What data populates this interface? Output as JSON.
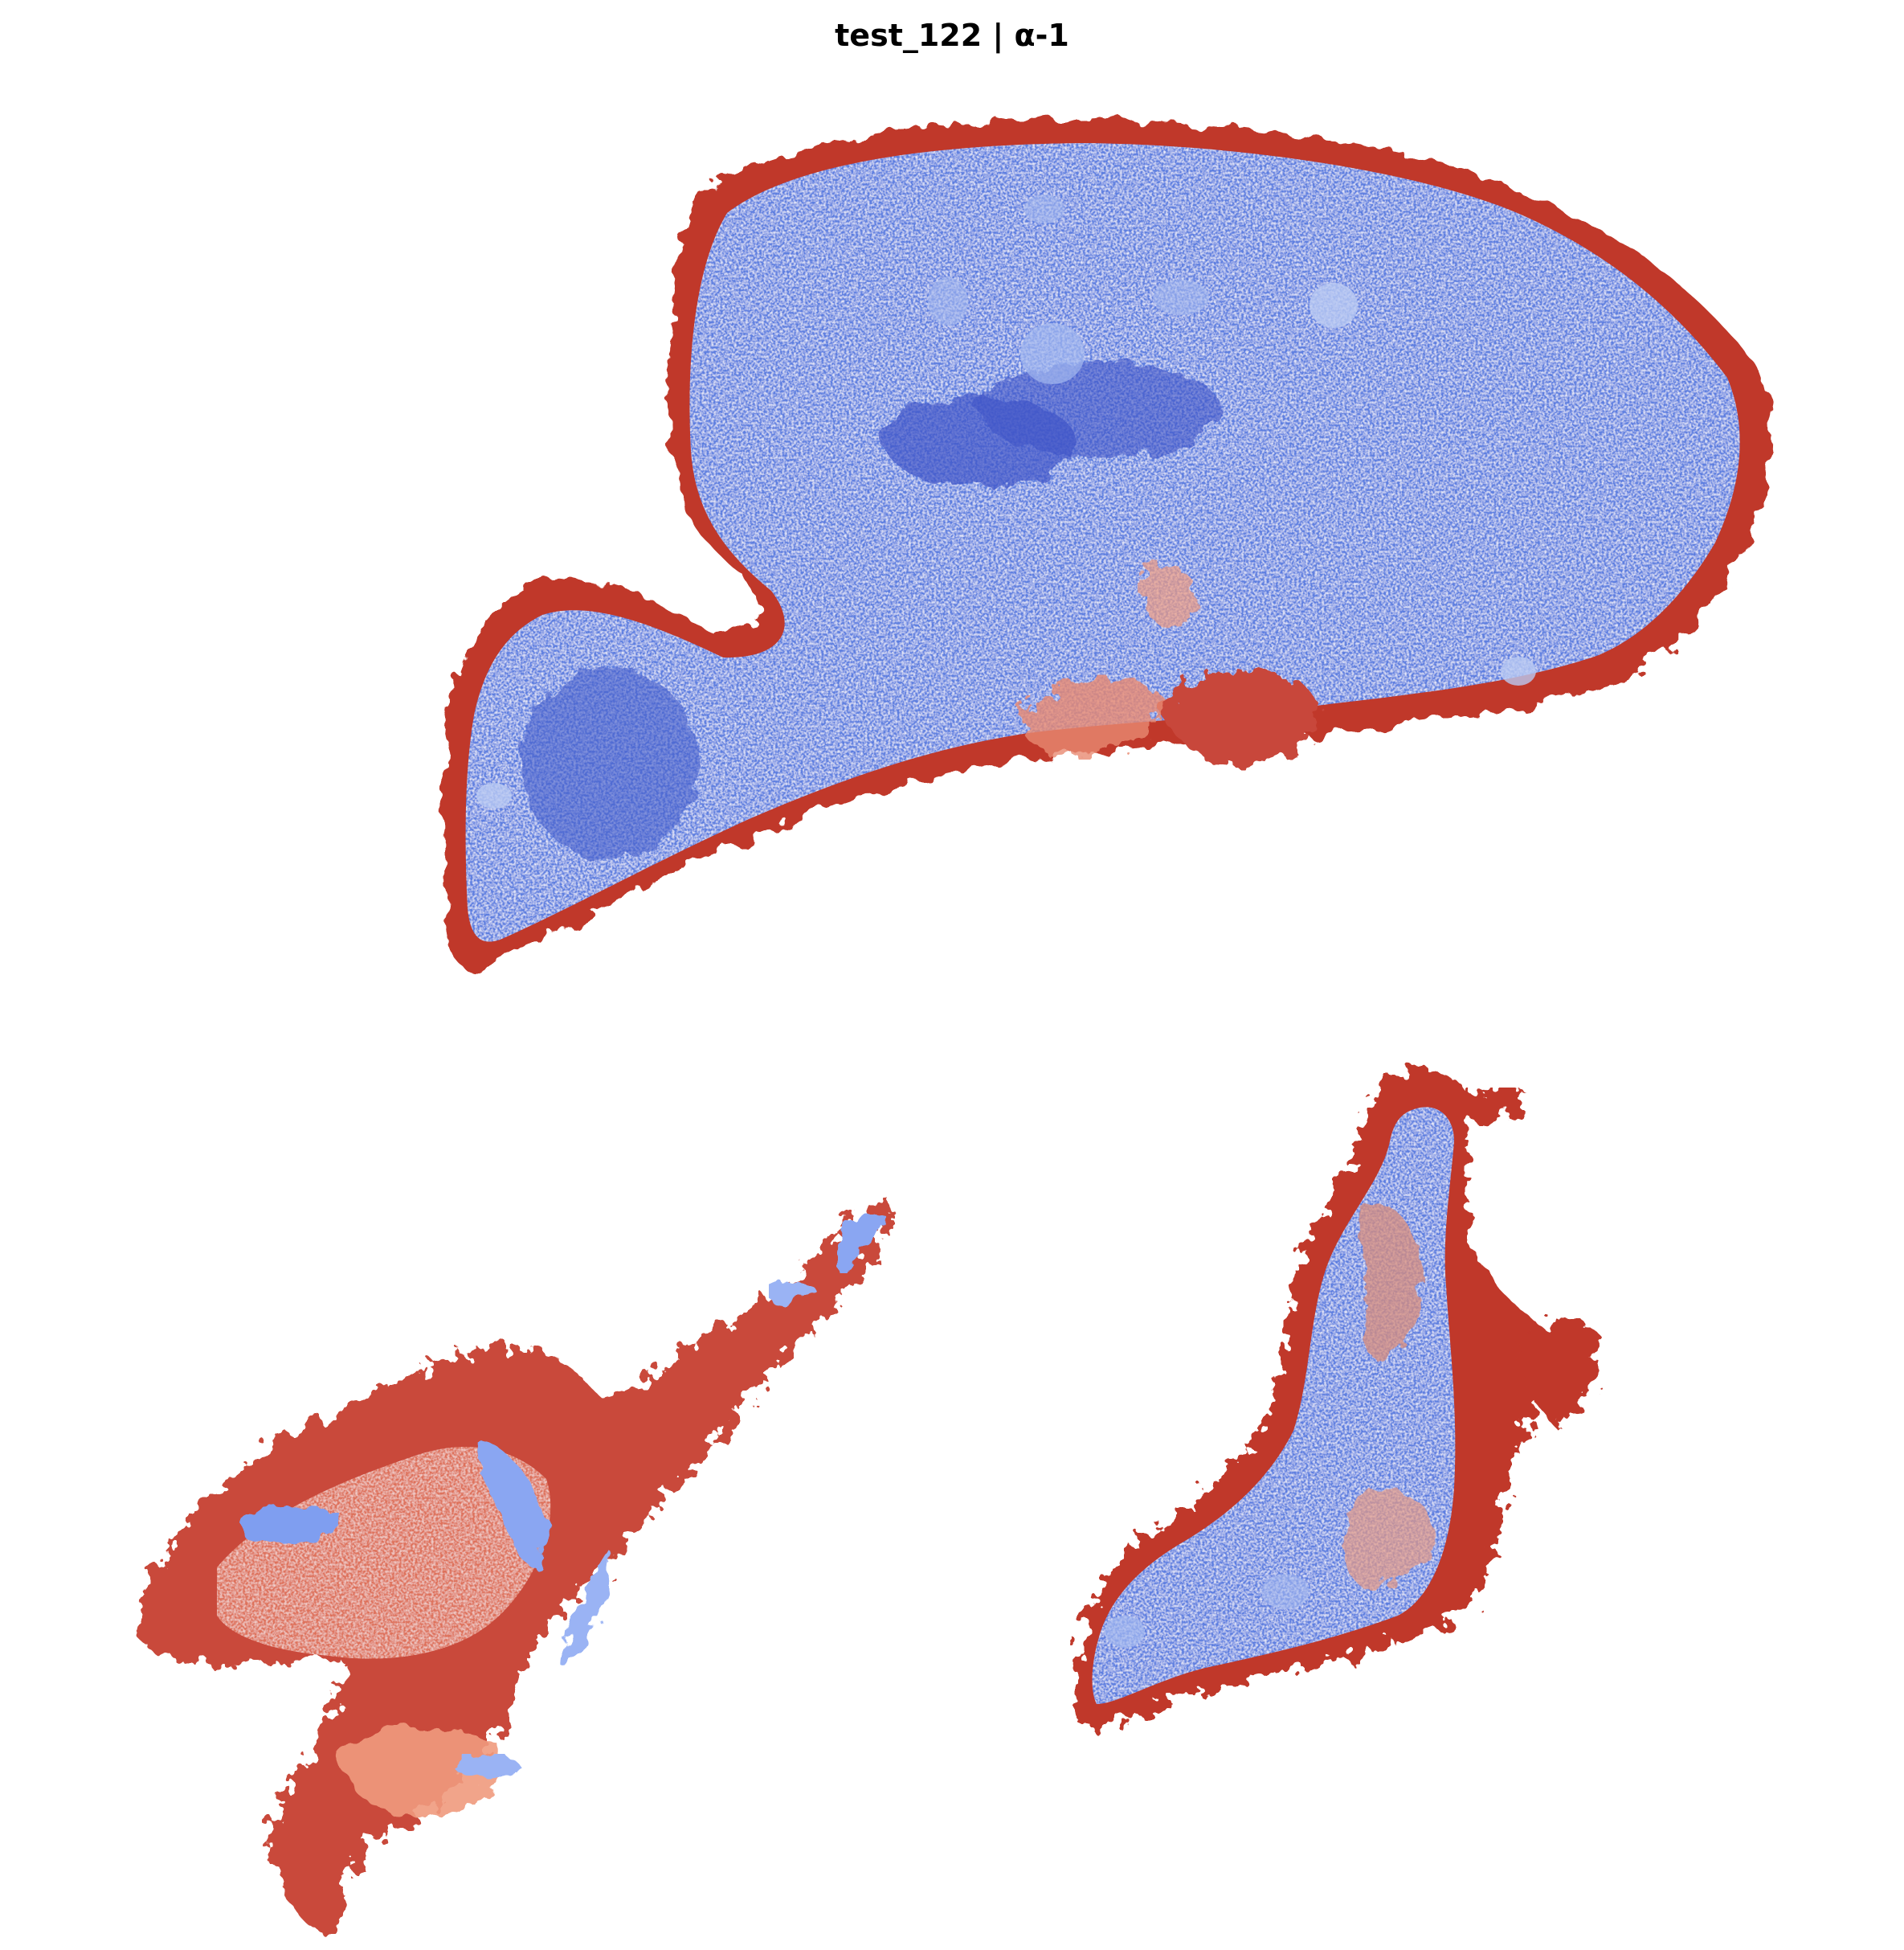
{
  "title": "test_122 | α-1",
  "colormap": {
    "name": "coolwarm",
    "low": "#3b4cc0",
    "mid_low": "#7396f5",
    "neutral": "#dddcdc",
    "mid_high": "#f08a6e",
    "high": "#b40426"
  },
  "regions": [
    {
      "name": "upper-tissue-section",
      "dominant": "low",
      "rim": "high"
    },
    {
      "name": "lower-left-tissue-section",
      "dominant": "high",
      "inner_patches": "low"
    },
    {
      "name": "lower-right-tissue-section",
      "dominant": "low",
      "rim": "high"
    }
  ]
}
